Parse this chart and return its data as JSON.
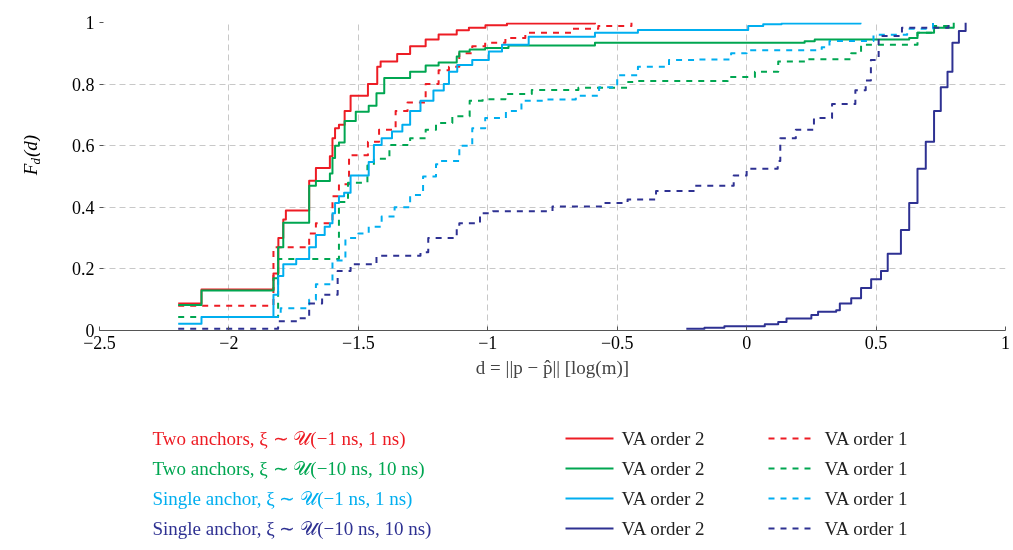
{
  "chart_data": {
    "type": "step",
    "xlabel": "d = ||p − p̂|| [log(m)]",
    "ylabel": "F$_{d}$(d)",
    "xlim": [
      -2.5,
      1
    ],
    "ylim": [
      0,
      1
    ],
    "xticks": [
      {
        "value": -2.5,
        "label": "−2.5"
      },
      {
        "value": -2,
        "label": "−2"
      },
      {
        "value": -1.5,
        "label": "−1.5"
      },
      {
        "value": -1,
        "label": "−1"
      },
      {
        "value": -0.5,
        "label": "−0.5"
      },
      0,
      0.5,
      1
    ],
    "yticks": [
      0,
      0.2,
      0.4,
      0.6,
      0.8,
      1
    ],
    "grid": true,
    "legend": "bottom",
    "annotations": [
      "Two anchors, ξ ∼ 𝒰(−1 ns, 1 ns)",
      "Two anchors, ξ ∼ 𝒰(−10 ns, 10 ns)",
      "Single anchor, ξ ∼ 𝒰(−1 ns, 1 ns)",
      "Single anchor, ξ ∼ 𝒰(−10 ns, 10 ns)"
    ],
    "series": [
      {
        "name": "VA order 2",
        "color": "#ed1c24",
        "line_style": "solid",
        "x": [
          -2.196,
          -2.106,
          -1.828,
          -1.809,
          -1.79,
          -1.78,
          -1.69,
          -1.664,
          -1.61,
          -1.6,
          -1.59,
          -1.575,
          -1.553,
          -1.53,
          -1.463,
          -1.427,
          -1.414,
          -1.35,
          -1.3,
          -1.24,
          -1.19,
          -1.12,
          -1.073,
          -1.009,
          -0.926,
          -0.586
        ],
        "values": [
          0.088,
          0.133,
          0.185,
          0.3,
          0.36,
          0.39,
          0.486,
          0.528,
          0.566,
          0.624,
          0.657,
          0.668,
          0.713,
          0.762,
          0.8,
          0.856,
          0.873,
          0.898,
          0.923,
          0.945,
          0.961,
          0.975,
          0.983,
          0.991,
          0.997,
          1.0
        ]
      },
      {
        "name": "VA order 1",
        "color": "#ed1c24",
        "line_style": "dashed",
        "x": [
          -2.196,
          -1.828,
          -1.69,
          -1.664,
          -1.6,
          -1.575,
          -1.536,
          -1.463,
          -1.42,
          -1.356,
          -1.31,
          -1.24,
          -1.19,
          -1.15,
          -1.11,
          -1.06,
          -1.01,
          -0.932,
          -0.855,
          -0.676,
          -0.573,
          -0.445
        ],
        "values": [
          0.08,
          0.27,
          0.315,
          0.348,
          0.436,
          0.475,
          0.569,
          0.613,
          0.652,
          0.713,
          0.74,
          0.8,
          0.845,
          0.856,
          0.9,
          0.923,
          0.934,
          0.95,
          0.967,
          0.98,
          0.989,
          1.0
        ]
      },
      {
        "name": "VA order 2",
        "color": "#00a651",
        "line_style": "solid",
        "x": [
          -2.196,
          -2.106,
          -1.828,
          -1.81,
          -1.79,
          -1.69,
          -1.664,
          -1.61,
          -1.6,
          -1.59,
          -1.575,
          -1.553,
          -1.51,
          -1.46,
          -1.43,
          -1.4,
          -1.3,
          -1.24,
          -1.19,
          -1.12,
          -1.11,
          -1.07,
          -1.01,
          -0.92,
          -0.586,
          0.224,
          0.263,
          0.628,
          0.66,
          0.724,
          0.8
        ],
        "values": [
          0.083,
          0.13,
          0.17,
          0.27,
          0.35,
          0.47,
          0.485,
          0.51,
          0.56,
          0.6,
          0.61,
          0.68,
          0.71,
          0.73,
          0.77,
          0.82,
          0.84,
          0.86,
          0.87,
          0.89,
          0.906,
          0.912,
          0.917,
          0.925,
          0.934,
          0.939,
          0.945,
          0.95,
          0.967,
          0.983,
          1.0
        ]
      },
      {
        "name": "VA order 1",
        "color": "#00a651",
        "line_style": "dashed",
        "x": [
          -2.196,
          -1.81,
          -1.575,
          -1.54,
          -1.465,
          -1.44,
          -1.38,
          -1.3,
          -1.24,
          -1.2,
          -1.137,
          -1.07,
          -1.02,
          -0.932,
          -0.83,
          -0.65,
          -0.458,
          -0.42,
          -0.073,
          0.032,
          0.122,
          0.237,
          0.404,
          0.442,
          0.66,
          0.724,
          0.788
        ],
        "values": [
          0.044,
          0.232,
          0.417,
          0.48,
          0.536,
          0.558,
          0.602,
          0.624,
          0.652,
          0.674,
          0.696,
          0.746,
          0.751,
          0.768,
          0.781,
          0.788,
          0.807,
          0.81,
          0.823,
          0.84,
          0.873,
          0.881,
          0.9,
          0.928,
          0.967,
          0.989,
          1.0
        ]
      },
      {
        "name": "VA order 2",
        "color": "#00aeef",
        "line_style": "solid",
        "x": [
          -2.196,
          -2.106,
          -1.828,
          -1.81,
          -1.79,
          -1.74,
          -1.69,
          -1.664,
          -1.63,
          -1.61,
          -1.6,
          -1.59,
          -1.575,
          -1.555,
          -1.53,
          -1.46,
          -1.44,
          -1.41,
          -1.37,
          -1.33,
          -1.3,
          -1.26,
          -1.21,
          -1.17,
          -1.15,
          -1.118,
          -1.06,
          -0.996,
          -0.945,
          -0.842,
          -0.586,
          -0.42,
          0.006,
          0.064,
          0.135,
          0.44
        ],
        "values": [
          0.022,
          0.044,
          0.116,
          0.177,
          0.215,
          0.232,
          0.27,
          0.31,
          0.337,
          0.348,
          0.381,
          0.414,
          0.436,
          0.447,
          0.503,
          0.547,
          0.602,
          0.624,
          0.646,
          0.668,
          0.713,
          0.746,
          0.779,
          0.8,
          0.84,
          0.862,
          0.878,
          0.906,
          0.928,
          0.954,
          0.967,
          0.976,
          0.989,
          0.994,
          0.997,
          1.0
        ]
      },
      {
        "name": "VA order 1",
        "color": "#00aeef",
        "line_style": "dashed",
        "x": [
          -1.83,
          -1.8,
          -1.69,
          -1.664,
          -1.6,
          -1.55,
          -1.5,
          -1.46,
          -1.41,
          -1.36,
          -1.3,
          -1.25,
          -1.2,
          -1.188,
          -1.11,
          -1.06,
          -1.01,
          -0.93,
          -0.87,
          -0.78,
          -0.66,
          -0.57,
          -0.5,
          -0.42,
          -0.3,
          -0.2,
          -0.06,
          0.0,
          0.29,
          0.32,
          0.49,
          0.62,
          0.72
        ],
        "values": [
          0.044,
          0.072,
          0.1,
          0.15,
          0.227,
          0.3,
          0.315,
          0.337,
          0.37,
          0.4,
          0.44,
          0.5,
          0.54,
          0.55,
          0.6,
          0.657,
          0.69,
          0.713,
          0.746,
          0.75,
          0.762,
          0.79,
          0.829,
          0.856,
          0.878,
          0.88,
          0.9,
          0.91,
          0.92,
          0.94,
          0.96,
          0.98,
          1.0
        ]
      },
      {
        "name": "VA order 2",
        "color": "#2e3192",
        "line_style": "solid",
        "x": [
          -0.233,
          -0.163,
          -0.086,
          0.0,
          0.07,
          0.122,
          0.154,
          0.25,
          0.276,
          0.346,
          0.36,
          0.404,
          0.442,
          0.481,
          0.519,
          0.545,
          0.596,
          0.628,
          0.66,
          0.692,
          0.724,
          0.75,
          0.776,
          0.795,
          0.82,
          0.846
        ],
        "values": [
          0.006,
          0.009,
          0.014,
          0.014,
          0.02,
          0.028,
          0.039,
          0.05,
          0.061,
          0.066,
          0.088,
          0.105,
          0.138,
          0.166,
          0.193,
          0.249,
          0.326,
          0.414,
          0.525,
          0.613,
          0.713,
          0.79,
          0.84,
          0.934,
          0.972,
          1.0
        ]
      },
      {
        "name": "VA order 1",
        "color": "#2e3192",
        "line_style": "dashed",
        "x": [
          -2.196,
          -1.81,
          -1.73,
          -1.69,
          -1.64,
          -1.58,
          -1.53,
          -1.43,
          -1.26,
          -1.23,
          -1.12,
          -1.11,
          -1.03,
          -0.98,
          -0.75,
          -0.55,
          -0.46,
          -0.35,
          -0.2,
          -0.05,
          0.0,
          0.12,
          0.13,
          0.19,
          0.26,
          0.33,
          0.42,
          0.46,
          0.48,
          0.51,
          0.6,
          0.78
        ],
        "values": [
          0.006,
          0.03,
          0.04,
          0.088,
          0.116,
          0.193,
          0.215,
          0.243,
          0.254,
          0.3,
          0.33,
          0.348,
          0.381,
          0.387,
          0.403,
          0.414,
          0.425,
          0.453,
          0.47,
          0.503,
          0.525,
          0.55,
          0.624,
          0.652,
          0.69,
          0.735,
          0.78,
          0.812,
          0.878,
          0.956,
          0.983,
          1.0
        ]
      }
    ]
  }
}
